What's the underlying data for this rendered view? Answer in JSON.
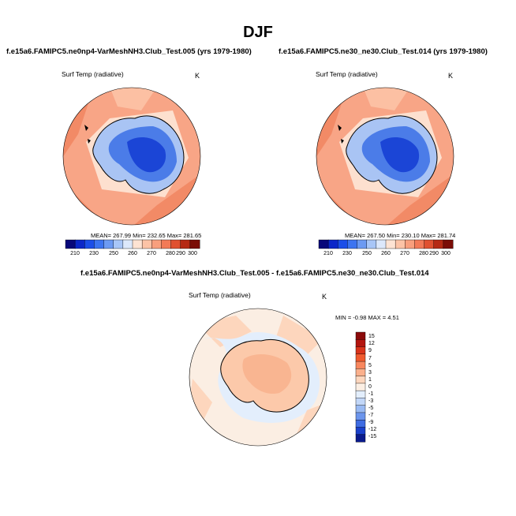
{
  "figure": {
    "title": "DJF"
  },
  "panels": [
    {
      "title": "f.e15a6.FAMIPC5.ne0np4-VarMeshNH3.Club_Test.005 (yrs 1979-1980)",
      "variable": "Surf Temp (radiative)",
      "units": "K",
      "stats": "MEAN= 267.99  Min= 232.65  Max= 281.65",
      "colorbar_ticks": [
        "210",
        "230",
        "250",
        "260",
        "270",
        "280",
        "290",
        "300"
      ]
    },
    {
      "title": "f.e15a6.FAMIPC5.ne30_ne30.Club_Test.014 (yrs 1979-1980)",
      "variable": "Surf Temp (radiative)",
      "units": "K",
      "stats": "MEAN= 267.50  Min= 230.10  Max= 281.74",
      "colorbar_ticks": [
        "210",
        "230",
        "250",
        "260",
        "270",
        "280",
        "290",
        "300"
      ]
    }
  ],
  "difference": {
    "title": "f.e15a6.FAMIPC5.ne0np4-VarMeshNH3.Club_Test.005 - f.e15a6.FAMIPC5.ne30_ne30.Club_Test.014",
    "variable": "Surf Temp (radiative)",
    "units": "K",
    "stats": "MIN = -0.98  MAX =   4.51",
    "colorbar_ticks": [
      "15",
      "12",
      "9",
      "7",
      "5",
      "3",
      "1",
      "0",
      "-1",
      "-3",
      "-5",
      "-7",
      "-9",
      "-12",
      "-15"
    ]
  },
  "colors": {
    "abs_scale": [
      "#08087a",
      "#0b27c8",
      "#1b4ee8",
      "#3c74f0",
      "#6c9af2",
      "#a8c6f7",
      "#dce8fb",
      "#fde3d3",
      "#fcc3a6",
      "#f89f7d",
      "#f27a57",
      "#e05130",
      "#b52a14",
      "#7a0d06"
    ],
    "diff_scale": [
      "#8b0a0a",
      "#b3150e",
      "#d9331a",
      "#ef5a2e",
      "#f8875e",
      "#fbb08c",
      "#fdd6bd",
      "#fbeee3",
      "#e3eefc",
      "#c2d7f8",
      "#99baf3",
      "#6c95ec",
      "#3f6ce2",
      "#1a40cb",
      "#0a1a8c"
    ]
  }
}
